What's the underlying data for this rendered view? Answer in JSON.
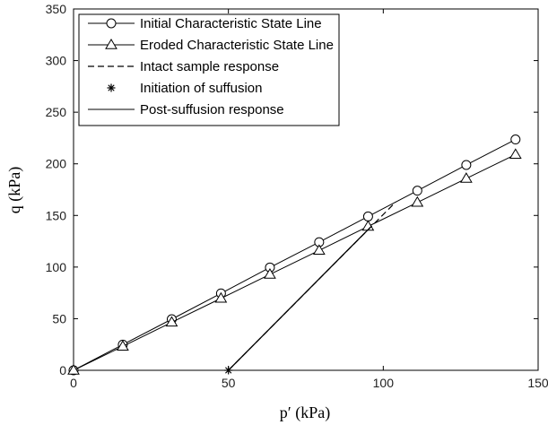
{
  "chart_data": {
    "type": "line",
    "xlabel": "p′ (kPa)",
    "ylabel": "q (kPa)",
    "xlim": [
      0,
      150
    ],
    "ylim": [
      0,
      350
    ],
    "xticks": [
      0,
      50,
      100,
      150
    ],
    "yticks": [
      0,
      50,
      100,
      150,
      200,
      250,
      300,
      350
    ],
    "grid": false,
    "legend_position": "top-left",
    "series": [
      {
        "name": "Initial Characteristic State Line",
        "marker": "circle",
        "line": "solid",
        "points": [
          [
            0,
            0
          ],
          [
            15.9,
            24.9
          ],
          [
            31.7,
            49.5
          ],
          [
            47.6,
            74.5
          ],
          [
            63.4,
            99.6
          ],
          [
            79.3,
            124.1
          ],
          [
            95.1,
            149
          ],
          [
            111,
            174
          ],
          [
            126.8,
            198.9
          ],
          [
            142.7,
            223.6
          ]
        ]
      },
      {
        "name": "Eroded Characteristic State Line",
        "marker": "triangle",
        "line": "solid",
        "points": [
          [
            0,
            0
          ],
          [
            15.9,
            23.2
          ],
          [
            31.7,
            46.5
          ],
          [
            47.6,
            69.7
          ],
          [
            63.4,
            92.9
          ],
          [
            79.3,
            116.1
          ],
          [
            95.1,
            139.4
          ],
          [
            111,
            162.6
          ],
          [
            126.8,
            185.8
          ],
          [
            142.7,
            209
          ]
        ]
      },
      {
        "name": "Intact sample response",
        "marker": "none",
        "line": "dashed",
        "points": [
          [
            50,
            0
          ],
          [
            104,
            163
          ]
        ]
      },
      {
        "name": "Initiation of suffusion",
        "marker": "asterisk",
        "line": "none",
        "points": [
          [
            50,
            0
          ]
        ]
      },
      {
        "name": "Post-suffusion response",
        "marker": "none",
        "line": "solid",
        "points": [
          [
            50,
            0
          ],
          [
            96,
            139
          ]
        ]
      }
    ]
  }
}
